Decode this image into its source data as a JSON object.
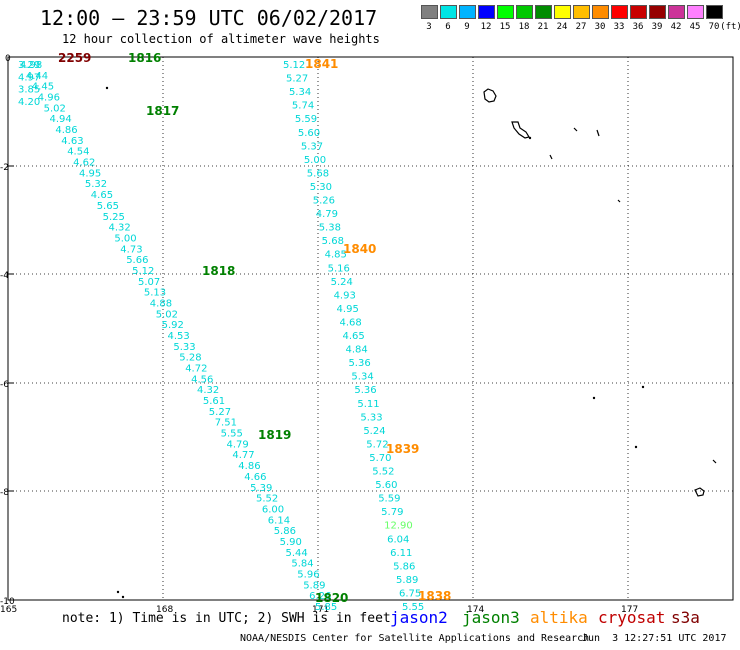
{
  "header": {
    "title": "12:00 — 23:59 UTC 06/02/2017",
    "subtitle": "12 hour collection of altimeter wave heights"
  },
  "legend": {
    "colors": [
      "#808080",
      "#00e5e5",
      "#00b4ff",
      "#0000ff",
      "#00ff00",
      "#00c800",
      "#008c00",
      "#ffff00",
      "#ffbe00",
      "#ff8c00",
      "#ff0000",
      "#c80000",
      "#960000",
      "#cc3399",
      "#ff80ff",
      "#000000"
    ],
    "labels": [
      "3",
      "6",
      "9",
      "12",
      "15",
      "18",
      "21",
      "24",
      "27",
      "30",
      "33",
      "36",
      "39",
      "42",
      "45",
      "70"
    ],
    "unit": "(ft)"
  },
  "axes": {
    "lat_labels": [
      "0",
      "-2",
      "-4",
      "-6",
      "-8",
      "-10"
    ],
    "lon_labels": [
      "165",
      "168",
      "171",
      "174",
      "177"
    ]
  },
  "tracks": [
    {
      "id": "track-a",
      "start": [
        20,
        60
      ],
      "end": [
        315,
        602
      ],
      "values": [
        "4.98",
        "4.44",
        "4.45",
        "4.96",
        "5.02",
        "4.94",
        "4.86",
        "4.63",
        "4.54",
        "4.62",
        "4.95",
        "5.32",
        "4.65",
        "5.65",
        "5.25",
        "4.32",
        "5.00",
        "4.73",
        "5.66",
        "5.12",
        "5.07",
        "5.13",
        "4.88",
        "5.02",
        "5.92",
        "4.53",
        "5.33",
        "5.28",
        "4.72",
        "4.56",
        "4.32",
        "5.61",
        "5.27",
        "7.51",
        "5.55",
        "4.79",
        "4.77",
        "4.86",
        "4.66",
        "5.39",
        "5.52",
        "6.00",
        "6.14",
        "5.86",
        "5.90",
        "5.44",
        "5.84",
        "5.96",
        "5.89",
        "6.26",
        "5.85"
      ]
    },
    {
      "id": "track-b",
      "start": [
        283,
        60
      ],
      "end": [
        402,
        602
      ],
      "values": [
        "5.12",
        "5.27",
        "5.34",
        "5.74",
        "5.59",
        "5.60",
        "5.37",
        "5.00",
        "5.68",
        "5.30",
        "5.26",
        "4.79",
        "5.38",
        "5.68",
        "4.85",
        "5.16",
        "5.24",
        "4.93",
        "4.95",
        "4.68",
        "4.65",
        "4.84",
        "5.36",
        "5.34",
        "5.36",
        "5.11",
        "5.33",
        "5.24",
        "5.72",
        "5.70",
        "5.52",
        "5.60",
        "5.59",
        "5.79",
        "12.90",
        "6.04",
        "6.11",
        "5.86",
        "5.89",
        "6.75",
        "5.55"
      ]
    },
    {
      "id": "track-c",
      "start": [
        18,
        60
      ],
      "end": [
        18,
        97
      ],
      "values": [
        "3.29",
        "4.97",
        "3.85",
        "4.20"
      ]
    }
  ],
  "pass_times": [
    {
      "text": "2259",
      "color": "#800000"
    },
    {
      "text": "1816",
      "color": "#008000"
    },
    {
      "text": "1817",
      "color": "#008000"
    },
    {
      "text": "1818",
      "color": "#008000"
    },
    {
      "text": "1819",
      "color": "#008000"
    },
    {
      "text": "1820",
      "color": "#008000"
    },
    {
      "text": "1841",
      "color": "#ff8c00"
    },
    {
      "text": "1840",
      "color": "#ff8c00"
    },
    {
      "text": "1839",
      "color": "#ff8c00"
    },
    {
      "text": "1838",
      "color": "#ff8c00"
    }
  ],
  "note": "note: 1) Time is in UTC; 2) SWH is in feet",
  "satellites": [
    {
      "name": "jason2",
      "color": "#0000ff"
    },
    {
      "name": "jason3",
      "color": "#008000"
    },
    {
      "name": "altika",
      "color": "#ff8c00"
    },
    {
      "name": "cryosat",
      "color": "#c00000"
    },
    {
      "name": "s3a",
      "color": "#800000"
    }
  ],
  "footer": {
    "credit": "NOAA/NESDIS Center for Satellite Applications and Research",
    "timestamp": "Jun  3 12:27:51 UTC 2017"
  }
}
